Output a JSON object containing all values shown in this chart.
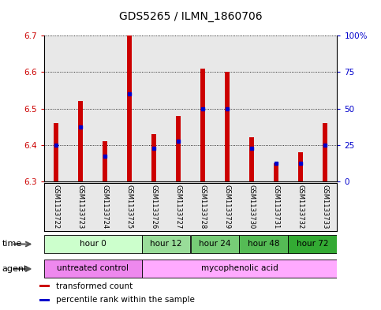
{
  "title": "GDS5265 / ILMN_1860706",
  "samples": [
    "GSM1133722",
    "GSM1133723",
    "GSM1133724",
    "GSM1133725",
    "GSM1133726",
    "GSM1133727",
    "GSM1133728",
    "GSM1133729",
    "GSM1133730",
    "GSM1133731",
    "GSM1133732",
    "GSM1133733"
  ],
  "bar_top": [
    6.46,
    6.52,
    6.41,
    6.7,
    6.43,
    6.48,
    6.61,
    6.6,
    6.42,
    6.35,
    6.38,
    6.46
  ],
  "bar_bottom": [
    6.3,
    6.3,
    6.3,
    6.3,
    6.3,
    6.3,
    6.3,
    6.3,
    6.3,
    6.3,
    6.3,
    6.3
  ],
  "percentile": [
    6.4,
    6.45,
    6.37,
    6.54,
    6.39,
    6.41,
    6.5,
    6.5,
    6.39,
    6.35,
    6.35,
    6.4
  ],
  "ylim_left": [
    6.3,
    6.7
  ],
  "ylim_right": [
    0,
    100
  ],
  "yticks_left": [
    6.3,
    6.4,
    6.5,
    6.6,
    6.7
  ],
  "yticks_right": [
    0,
    25,
    50,
    75,
    100
  ],
  "ytick_right_labels": [
    "0",
    "25",
    "50",
    "75",
    "100%"
  ],
  "bar_color": "#cc0000",
  "percentile_color": "#0000cc",
  "time_groups": [
    {
      "label": "hour 0",
      "start": 0,
      "end": 4,
      "color": "#ccffcc"
    },
    {
      "label": "hour 12",
      "start": 4,
      "end": 6,
      "color": "#99dd99"
    },
    {
      "label": "hour 24",
      "start": 6,
      "end": 8,
      "color": "#77cc77"
    },
    {
      "label": "hour 48",
      "start": 8,
      "end": 10,
      "color": "#55bb55"
    },
    {
      "label": "hour 72",
      "start": 10,
      "end": 12,
      "color": "#33aa33"
    }
  ],
  "agent_groups": [
    {
      "label": "untreated control",
      "start": 0,
      "end": 4,
      "color": "#ee88ee"
    },
    {
      "label": "mycophenolic acid",
      "start": 4,
      "end": 12,
      "color": "#ffaaff"
    }
  ],
  "legend_items": [
    {
      "label": "transformed count",
      "color": "#cc0000"
    },
    {
      "label": "percentile rank within the sample",
      "color": "#0000cc"
    }
  ],
  "bg_color": "#ffffff",
  "sample_bg_color": "#cccccc",
  "grid_color": "#000000",
  "left_tick_color": "#cc0000",
  "right_tick_color": "#0000cc"
}
